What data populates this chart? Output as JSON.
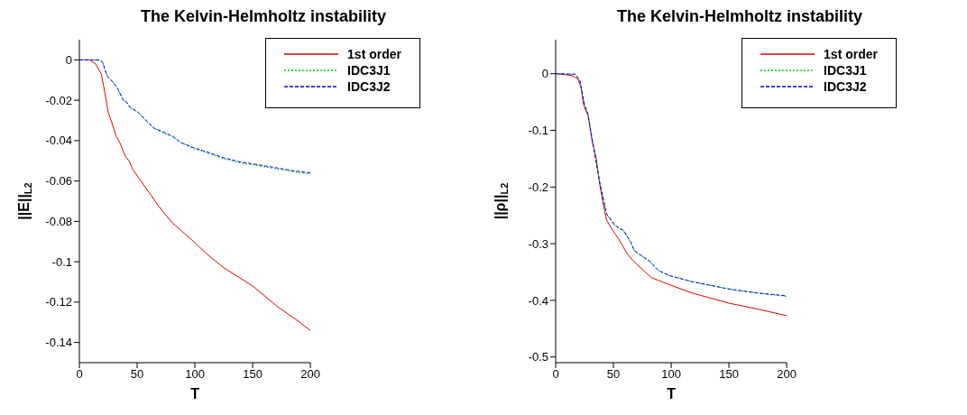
{
  "chart_data": [
    {
      "type": "line",
      "title": "The Kelvin-Helmholtz instability",
      "xlabel": "T",
      "ylabel": "||E||$_{L2}$",
      "xlim": [
        0,
        200
      ],
      "xticks": [
        0,
        50,
        100,
        150,
        200
      ],
      "ylim": [
        -0.15,
        0.01
      ],
      "yticks": [
        -0.14,
        -0.12,
        -0.1,
        -0.08,
        -0.06,
        -0.04,
        -0.02,
        0
      ],
      "grid": false,
      "legend": "top right",
      "marker": "none",
      "series": [
        {
          "name": "1st order",
          "color": "#e00000",
          "line_style": "solid",
          "x": [
            0,
            9,
            14,
            19,
            22,
            25,
            28,
            32,
            35,
            40,
            43,
            46,
            52,
            57,
            62,
            68,
            75,
            81,
            91,
            99,
            110,
            125,
            139,
            150,
            171,
            186,
            200
          ],
          "values": [
            0,
            0,
            -0.002,
            -0.007,
            -0.016,
            -0.026,
            -0.031,
            -0.038,
            -0.041,
            -0.048,
            -0.05,
            -0.054,
            -0.059,
            -0.063,
            -0.067,
            -0.072,
            -0.077,
            -0.081,
            -0.086,
            -0.09,
            -0.096,
            -0.103,
            -0.108,
            -0.112,
            -0.122,
            -0.128,
            -0.134
          ]
        },
        {
          "name": "IDC3J1",
          "color": "#00d000",
          "line_style": "dotted",
          "x": [
            0,
            17,
            20,
            24,
            29,
            33,
            38,
            41,
            44,
            51,
            57,
            65,
            72,
            81,
            88,
            99,
            110,
            125,
            139,
            150,
            171,
            186,
            200
          ],
          "values": [
            0,
            0,
            -0.001,
            -0.008,
            -0.011,
            -0.014,
            -0.02,
            -0.021,
            -0.024,
            -0.026,
            -0.03,
            -0.034,
            -0.036,
            -0.038,
            -0.041,
            -0.044,
            -0.046,
            -0.049,
            -0.051,
            -0.052,
            -0.054,
            -0.0555,
            -0.0565
          ]
        },
        {
          "name": "IDC3J2",
          "color": "#0000ff",
          "line_style": "dashed",
          "x": [
            0,
            17,
            20,
            24,
            29,
            33,
            38,
            41,
            44,
            51,
            57,
            65,
            72,
            81,
            88,
            99,
            110,
            125,
            139,
            150,
            171,
            186,
            200
          ],
          "values": [
            0,
            0,
            -0.001,
            -0.008,
            -0.011,
            -0.014,
            -0.02,
            -0.021,
            -0.0235,
            -0.026,
            -0.0295,
            -0.034,
            -0.0355,
            -0.038,
            -0.041,
            -0.0435,
            -0.0455,
            -0.0485,
            -0.0505,
            -0.0515,
            -0.0535,
            -0.055,
            -0.056
          ]
        }
      ]
    },
    {
      "type": "line",
      "title": "The Kelvin-Helmholtz instability",
      "xlabel": "T",
      "ylabel": "||ρ||$_{L2}$",
      "xlim": [
        0,
        200
      ],
      "xticks": [
        0,
        50,
        100,
        150,
        200
      ],
      "ylim": [
        -0.51,
        0.06
      ],
      "yticks": [
        -0.5,
        -0.4,
        -0.3,
        -0.2,
        -0.1,
        0
      ],
      "grid": false,
      "legend": "top right",
      "marker": "none",
      "series": [
        {
          "name": "1st order",
          "color": "#e00000",
          "line_style": "solid",
          "x": [
            0,
            14,
            19.5,
            22,
            24,
            26,
            28,
            31.5,
            35,
            38,
            41,
            44,
            49,
            55,
            62,
            67,
            71,
            78,
            83,
            98,
            118,
            150,
            174,
            200
          ],
          "values": [
            0,
            -0.003,
            -0.01,
            -0.025,
            -0.053,
            -0.065,
            -0.073,
            -0.118,
            -0.148,
            -0.193,
            -0.228,
            -0.258,
            -0.275,
            -0.293,
            -0.318,
            -0.33,
            -0.338,
            -0.351,
            -0.36,
            -0.372,
            -0.387,
            -0.405,
            -0.415,
            -0.427
          ]
        },
        {
          "name": "IDC3J1",
          "color": "#00d000",
          "line_style": "dotted",
          "x": [
            0,
            17,
            21,
            25,
            28,
            31.5,
            38,
            44,
            51,
            59,
            65,
            68,
            75,
            81,
            89,
            98,
            118,
            150,
            174,
            200
          ],
          "values": [
            0,
            -0.001,
            -0.013,
            -0.055,
            -0.072,
            -0.115,
            -0.19,
            -0.248,
            -0.268,
            -0.278,
            -0.298,
            -0.313,
            -0.323,
            -0.331,
            -0.348,
            -0.356,
            -0.367,
            -0.38,
            -0.387,
            -0.393
          ]
        },
        {
          "name": "IDC3J2",
          "color": "#0000ff",
          "line_style": "dashed",
          "x": [
            0,
            17,
            21,
            25,
            28,
            31.5,
            38,
            44,
            51,
            59,
            65,
            68,
            75,
            81,
            89,
            98,
            118,
            150,
            174,
            200
          ],
          "values": [
            0,
            -0.001,
            -0.012,
            -0.055,
            -0.071,
            -0.115,
            -0.19,
            -0.247,
            -0.267,
            -0.277,
            -0.297,
            -0.312,
            -0.322,
            -0.33,
            -0.347,
            -0.356,
            -0.367,
            -0.38,
            -0.387,
            -0.392
          ]
        }
      ]
    }
  ]
}
